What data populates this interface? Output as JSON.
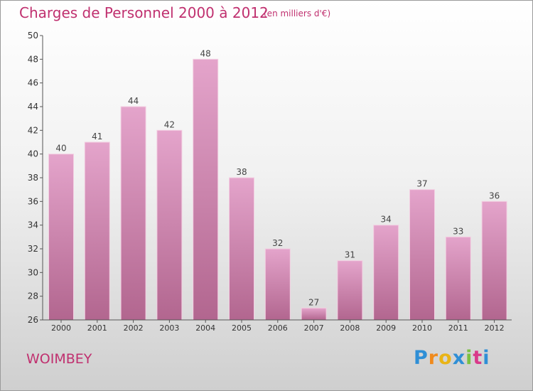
{
  "title": "Charges de Personnel 2000 à 2012",
  "subtitle": "(en milliers d'€)",
  "town": "WOIMBEY",
  "logo": {
    "letters": [
      "P",
      "r",
      "o",
      "x",
      "i",
      "t",
      "i"
    ]
  },
  "colors": {
    "accent": "#c0306f",
    "bar_top": "#e4a4cb",
    "bar_bottom": "#b2668f",
    "axis": "#555555"
  },
  "chart_data": {
    "type": "bar",
    "title": "Charges de Personnel 2000 à 2012",
    "subtitle": "(en milliers d'€)",
    "categories": [
      "2000",
      "2001",
      "2002",
      "2003",
      "2004",
      "2005",
      "2006",
      "2007",
      "2008",
      "2009",
      "2010",
      "2011",
      "2012"
    ],
    "values": [
      40,
      41,
      44,
      42,
      48,
      38,
      32,
      27,
      31,
      34,
      37,
      33,
      36
    ],
    "ylim": [
      26,
      50
    ],
    "yticks": [
      26,
      28,
      30,
      32,
      34,
      36,
      38,
      40,
      42,
      44,
      46,
      48,
      50
    ],
    "grid": false,
    "data_labels": true
  }
}
